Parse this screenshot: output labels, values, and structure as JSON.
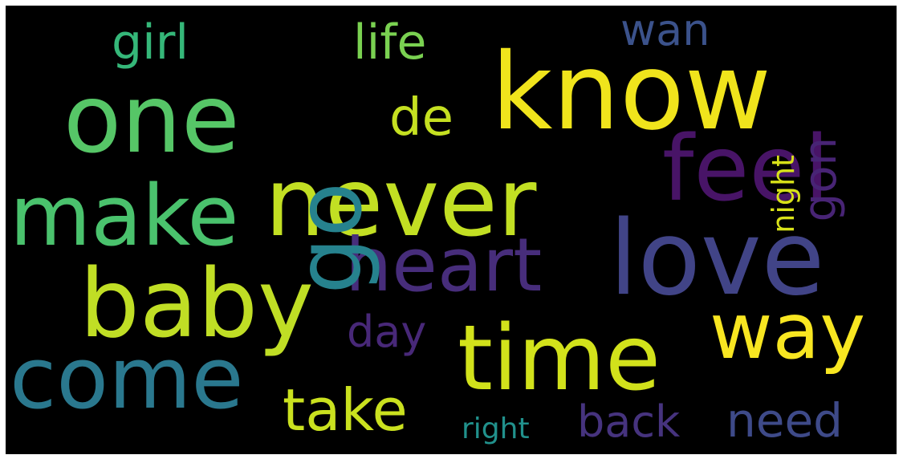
{
  "words": [
    {
      "key": "know",
      "text": "know",
      "color": "#f0e41c"
    },
    {
      "key": "one",
      "text": "one",
      "color": "#56c667"
    },
    {
      "key": "never",
      "text": "never",
      "color": "#c2df23"
    },
    {
      "key": "feel",
      "text": "feel",
      "color": "#481467"
    },
    {
      "key": "make",
      "text": "make",
      "color": "#4ac26d"
    },
    {
      "key": "love",
      "text": "love",
      "color": "#414487"
    },
    {
      "key": "baby",
      "text": "baby",
      "color": "#c0de25"
    },
    {
      "key": "heart",
      "text": "heart",
      "color": "#472d7b"
    },
    {
      "key": "way",
      "text": "way",
      "color": "#f8e621"
    },
    {
      "key": "time",
      "text": "time",
      "color": "#d2e21b"
    },
    {
      "key": "come",
      "text": "come",
      "color": "#2a788e"
    },
    {
      "key": "take",
      "text": "take",
      "color": "#cae11f"
    },
    {
      "key": "go",
      "text": "go",
      "color": "#26828e"
    },
    {
      "key": "de",
      "text": "de",
      "color": "#c5e021"
    },
    {
      "key": "girl",
      "text": "girl",
      "color": "#35b779"
    },
    {
      "key": "life",
      "text": "life",
      "color": "#7ad151"
    },
    {
      "key": "wan",
      "text": "wan",
      "color": "#3b528b"
    },
    {
      "key": "gon",
      "text": "gon",
      "color": "#482475"
    },
    {
      "key": "night",
      "text": "night",
      "color": "#d8e219"
    },
    {
      "key": "day",
      "text": "day",
      "color": "#482878"
    },
    {
      "key": "back",
      "text": "back",
      "color": "#46337e"
    },
    {
      "key": "need",
      "text": "need",
      "color": "#3e4a89"
    },
    {
      "key": "right",
      "text": "right",
      "color": "#21918c"
    }
  ]
}
